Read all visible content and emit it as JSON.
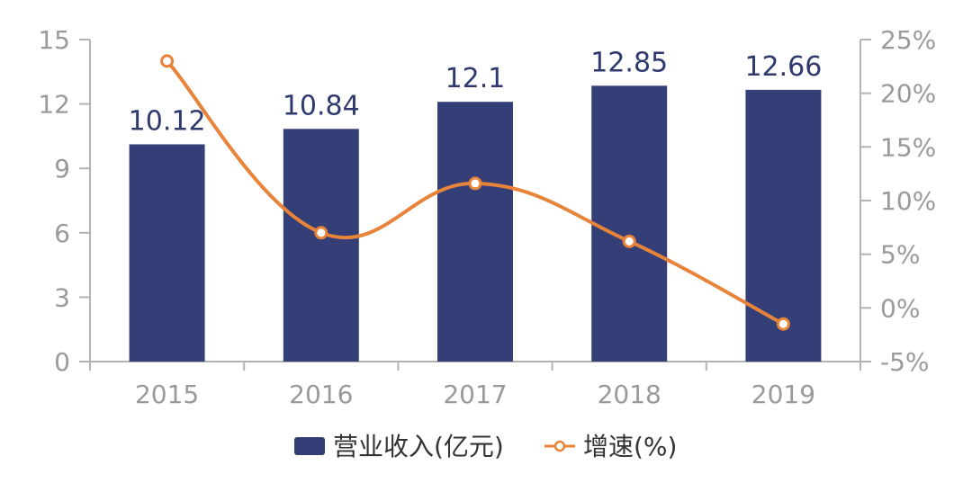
{
  "chart_data": {
    "type": "bar",
    "categories": [
      "2015",
      "2016",
      "2017",
      "2018",
      "2019"
    ],
    "series": [
      {
        "name": "营业收入(亿元)",
        "type": "bar",
        "axis": "left",
        "values": [
          10.12,
          10.84,
          12.1,
          12.85,
          12.66
        ],
        "labels": [
          "10.12",
          "10.84",
          "12.1",
          "12.85",
          "12.66"
        ],
        "color": "#353f77"
      },
      {
        "name": "增速(%)",
        "type": "line",
        "axis": "right",
        "smooth": true,
        "values": [
          23,
          7,
          11.6,
          6.2,
          -1.5
        ],
        "color": "#e8833a"
      }
    ],
    "y_left": {
      "min": 0,
      "max": 15,
      "ticks": [
        0,
        3,
        6,
        9,
        12,
        15
      ],
      "tick_labels": [
        "0",
        "3",
        "6",
        "9",
        "12",
        "15"
      ]
    },
    "y_right": {
      "min": -5,
      "max": 25,
      "ticks": [
        -5,
        0,
        5,
        10,
        15,
        20,
        25
      ],
      "tick_labels": [
        "-5%",
        "0%",
        "5%",
        "10%",
        "15%",
        "20%",
        "25%"
      ]
    },
    "axis_color": "#b3b3b3",
    "grid": false,
    "legend_position": "bottom"
  }
}
